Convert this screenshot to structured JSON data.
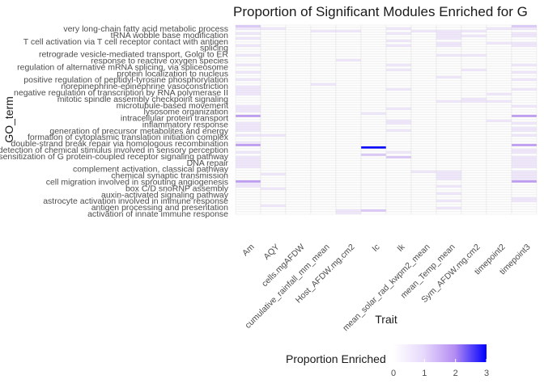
{
  "chart_data": {
    "type": "heatmap",
    "title": "Proportion of Significant Modules Enriched for G",
    "xlabel": "Trait",
    "ylabel": "GO_term",
    "legend": {
      "title": "Proportion Enriched",
      "ticks": [
        0,
        1,
        2,
        3
      ],
      "range": [
        0,
        3
      ],
      "low_color": "#ffffff",
      "high_color": "#0000ff",
      "placement": "bottom"
    },
    "x_categories": [
      "Am",
      "AQY",
      "cells.mgAFDW",
      "cumulative_rainfall_mm_mean",
      "Host_AFDW.mg.cm2",
      "Ic",
      "Ik",
      "mean_solar_rad_kwpm2_mean",
      "mean_Temp_mean",
      "Sym_AFDW.mg.cm2",
      "timepoint2",
      "timepoint3"
    ],
    "y_tick_labels": [
      "very long-chain fatty acid metabolic process",
      "tRNA wobble base modification",
      "T cell activation via T cell receptor contact with antigen",
      "splicing",
      "retrograde vesicle-mediated transport, Golgi to ER",
      "response to reactive oxygen species",
      "regulation of alternative mRNA splicing, via spliceosome",
      "protein localization to nucleus",
      "positive regulation of peptidyl-tyrosine phosphorylation",
      "norepinephrine-epinephrine vasoconstriction",
      "negative regulation of transcription by RNA polymerase II",
      "mitotic spindle assembly checkpoint signaling",
      "microtubule-based movement",
      "lysosome organization",
      "intracellular protein transport",
      "inflammatory response",
      "generation of precursor metabolites and energy",
      "formation of cytoplasmic translation initiation complex",
      "double-strand break repair via homologous recombination",
      "detection of chemical stimulus involved in sensory perception",
      "desensitization of G protein-coupled receptor signaling pathway",
      "DNA repair",
      "complement activation, classical pathway",
      "chemical synaptic transmission",
      "cell migration involved in sprouting angiogenesis",
      "box C/D snoRNP assembly",
      "auxin-activated signaling pathway",
      "astrocyte activation involved in immune response",
      "antigen processing and presentation",
      "activation of innate immune response"
    ],
    "n_rows": 78,
    "values": [
      [
        1.2,
        0,
        0,
        0,
        0,
        0,
        0,
        0,
        0,
        0,
        0,
        1.2
      ],
      [
        0.6,
        0.6,
        0,
        0,
        0,
        0,
        0.6,
        0,
        0,
        0,
        0.6,
        0.6
      ],
      [
        0,
        0,
        0,
        0.6,
        0.6,
        0,
        0,
        0.6,
        0.6,
        0.6,
        0,
        0
      ],
      [
        0.6,
        0,
        0,
        0,
        0,
        0,
        0.6,
        0,
        0.6,
        0,
        0,
        0.6
      ],
      [
        0,
        0,
        0,
        0,
        0,
        0,
        0,
        0,
        0.6,
        0.6,
        0,
        0.6
      ],
      [
        0.6,
        0,
        0,
        0,
        0,
        0,
        0,
        0,
        0.6,
        0,
        0,
        0
      ],
      [
        0,
        0,
        0,
        0,
        0,
        0,
        0.6,
        0,
        0,
        0,
        0,
        0
      ],
      [
        0,
        0,
        0,
        0,
        0,
        0,
        0,
        0,
        0.6,
        0,
        0.6,
        0.6
      ],
      [
        0.6,
        0,
        0,
        0,
        0,
        0,
        0.6,
        0,
        0.6,
        0,
        0,
        0.6
      ],
      [
        0,
        0,
        0,
        0,
        0,
        0,
        0,
        0,
        0,
        0,
        0,
        0
      ],
      [
        0,
        0,
        0,
        0,
        0,
        0,
        0,
        0,
        0,
        0,
        0,
        0
      ],
      [
        0,
        0,
        0,
        0,
        0,
        0,
        0,
        0,
        0,
        0,
        0,
        0
      ],
      [
        0.6,
        0,
        0,
        0,
        0,
        0,
        0,
        0,
        0.6,
        0.6,
        0,
        0
      ],
      [
        0,
        0,
        0,
        0,
        0,
        0,
        0,
        0,
        0,
        0,
        0,
        0
      ],
      [
        0,
        0,
        0,
        0,
        0.6,
        0,
        0,
        0,
        0,
        0,
        0,
        0
      ],
      [
        0,
        0,
        0,
        0,
        0,
        0,
        0,
        0,
        0,
        0,
        0,
        0
      ],
      [
        0.6,
        0,
        0,
        0,
        0,
        0,
        0.6,
        0,
        0,
        0,
        0,
        0.6
      ],
      [
        0,
        0,
        0,
        0,
        0,
        0,
        0,
        0,
        0,
        0,
        0,
        0
      ],
      [
        0,
        0,
        0,
        0,
        0,
        0,
        0.6,
        0,
        0,
        0.6,
        0,
        0
      ],
      [
        0.6,
        0,
        0,
        0,
        0,
        0,
        0,
        0,
        0,
        0,
        0,
        0.6
      ],
      [
        0,
        0,
        0,
        0,
        0,
        0,
        0,
        0,
        0,
        0,
        0,
        0
      ],
      [
        0,
        0,
        0,
        0,
        0,
        0,
        0,
        0,
        0.6,
        0,
        0,
        0
      ],
      [
        0.6,
        0,
        0,
        0,
        0,
        0,
        0,
        0,
        0,
        0,
        0,
        0.6
      ],
      [
        0,
        0,
        0,
        0,
        0,
        0,
        0,
        0,
        0,
        0,
        0,
        0
      ],
      [
        0,
        0,
        0,
        0.6,
        0,
        0,
        0,
        0,
        0,
        0,
        0,
        0
      ],
      [
        0.6,
        0,
        0,
        0,
        0,
        0,
        0,
        0,
        0,
        0,
        0,
        0
      ],
      [
        0.6,
        0,
        0,
        0,
        0,
        0,
        0.6,
        0,
        0,
        0,
        0,
        0.6
      ],
      [
        0.6,
        0,
        0,
        0,
        0,
        0,
        0,
        0,
        0,
        0,
        0,
        0
      ],
      [
        0.6,
        0,
        0,
        0,
        0,
        0,
        0,
        0,
        0,
        0,
        0.6,
        0
      ],
      [
        0,
        0,
        0,
        0,
        0,
        0,
        0,
        0,
        0,
        0,
        0,
        0
      ],
      [
        0,
        0,
        0,
        0,
        0,
        0,
        0,
        0,
        0,
        0.6,
        0,
        0
      ],
      [
        0,
        0,
        0,
        0,
        0,
        0,
        0,
        0,
        0.6,
        0.6,
        0.6,
        0
      ],
      [
        0,
        0,
        0,
        0,
        0,
        0,
        0,
        0,
        0,
        0,
        0,
        0
      ],
      [
        0.6,
        0,
        0,
        0,
        0,
        0,
        0,
        0,
        0,
        0,
        0,
        0.6
      ],
      [
        0.6,
        0,
        0,
        0,
        0,
        0,
        0.6,
        0,
        0,
        0,
        0,
        0
      ],
      [
        0.6,
        0,
        0,
        0,
        0,
        0,
        0,
        0,
        0,
        0,
        0,
        0
      ],
      [
        0,
        0,
        0,
        0,
        0,
        0.6,
        0,
        0,
        0,
        0,
        0,
        0
      ],
      [
        1.8,
        0,
        0,
        0,
        0,
        0,
        0,
        0,
        0,
        0,
        0,
        1.8
      ],
      [
        0,
        0,
        0,
        0,
        0,
        0,
        0,
        0,
        0,
        0,
        0,
        0
      ],
      [
        0,
        0,
        0,
        0,
        0,
        0,
        0.6,
        0,
        0,
        0,
        0.6,
        0
      ],
      [
        0.6,
        0,
        0,
        0,
        0,
        0,
        0.6,
        0,
        0,
        0,
        0,
        0.6
      ],
      [
        0.6,
        0,
        0,
        0,
        0,
        0,
        0,
        0,
        0,
        0,
        0,
        0
      ],
      [
        0.6,
        0,
        0,
        0,
        0,
        0,
        0,
        0,
        0,
        0,
        0,
        0.6
      ],
      [
        0.6,
        0,
        0,
        0,
        0,
        0,
        0.6,
        0,
        0,
        0,
        0,
        0.6
      ],
      [
        0,
        0,
        0,
        0,
        0,
        0,
        0,
        0,
        0,
        0,
        0,
        0
      ],
      [
        0.6,
        0.6,
        0,
        0,
        0,
        0,
        0,
        0,
        0,
        0,
        0,
        0.6
      ],
      [
        0,
        0,
        0,
        0,
        0,
        0,
        0,
        0,
        0,
        0,
        0,
        0
      ],
      [
        0,
        0,
        0,
        0,
        0,
        0,
        0,
        0,
        0,
        0,
        0,
        0
      ],
      [
        0.6,
        0,
        0,
        0,
        0,
        0,
        0,
        0,
        0,
        0,
        0,
        0
      ],
      [
        1.8,
        0,
        0,
        0,
        0,
        0,
        0,
        0,
        0,
        0,
        0,
        1.8
      ],
      [
        0,
        0,
        0,
        0,
        0,
        3,
        0,
        0,
        0,
        0,
        0,
        0
      ],
      [
        0,
        0,
        0,
        0,
        0,
        0,
        0,
        0,
        0,
        0,
        0,
        0.6
      ],
      [
        0.6,
        0,
        0,
        0,
        0,
        0,
        0.6,
        0,
        0,
        0,
        0,
        0.6
      ],
      [
        0,
        0,
        0,
        0,
        0,
        1.2,
        0,
        0,
        0,
        0,
        0,
        0
      ],
      [
        0.6,
        0,
        0,
        0,
        0,
        0,
        1.2,
        0,
        0,
        0,
        0,
        0.6
      ],
      [
        0.6,
        0,
        0,
        0,
        0,
        0,
        0,
        0,
        0,
        0,
        0,
        0.6
      ],
      [
        0.6,
        0,
        0,
        0,
        0,
        0,
        0,
        0,
        0,
        0,
        0,
        0.6
      ],
      [
        0.6,
        0,
        0,
        0,
        0,
        0,
        0,
        0,
        0,
        0,
        0,
        0.6
      ],
      [
        0.6,
        0,
        0,
        0,
        0,
        0,
        0,
        0,
        0,
        0,
        0,
        0.6
      ],
      [
        0,
        0,
        0,
        0,
        0,
        0,
        0,
        0,
        0,
        0,
        0,
        0
      ],
      [
        0,
        0,
        0,
        0,
        0,
        0,
        0,
        0.6,
        0.6,
        0,
        0,
        0.6
      ],
      [
        0,
        0.6,
        0,
        0,
        0,
        0,
        0,
        0,
        0.6,
        0,
        0,
        0.6
      ],
      [
        0,
        0,
        0,
        0,
        0,
        0,
        0,
        0,
        0.6,
        0,
        0,
        0.6
      ],
      [
        0,
        0,
        0,
        0,
        0,
        0,
        0,
        0,
        0.6,
        0,
        0,
        0.6
      ],
      [
        1.8,
        0,
        0,
        0,
        0,
        0,
        0,
        0,
        0,
        0,
        0,
        1.8
      ],
      [
        0.6,
        0,
        0,
        0,
        0,
        0,
        0,
        0,
        0,
        0,
        0,
        0
      ],
      [
        0.6,
        0,
        0,
        0,
        0,
        0,
        0,
        0,
        0.6,
        0,
        0,
        0
      ],
      [
        0,
        0.6,
        0,
        0,
        0,
        0,
        0,
        0,
        0,
        0,
        0,
        0
      ],
      [
        0,
        0,
        0,
        0,
        0,
        0,
        0,
        0,
        0,
        0,
        0,
        0
      ],
      [
        0,
        0,
        0,
        0,
        0,
        0,
        0,
        0,
        0.6,
        0,
        0,
        0
      ],
      [
        0,
        0,
        0,
        0,
        0,
        0,
        0,
        0,
        0,
        0,
        0,
        0
      ],
      [
        0,
        0,
        0,
        0,
        0,
        0,
        0,
        0,
        0,
        0,
        0,
        0.6
      ],
      [
        0,
        0,
        0,
        0,
        0,
        0,
        0,
        0,
        0.6,
        0,
        0,
        0.6
      ],
      [
        0,
        0,
        0,
        0,
        0,
        0,
        0,
        0,
        0,
        0,
        0,
        0
      ],
      [
        0,
        0.6,
        0,
        0,
        0,
        0,
        0,
        0,
        0,
        0,
        0,
        0
      ],
      [
        0,
        0,
        0,
        0,
        0,
        0,
        0,
        0,
        0.6,
        0,
        0,
        0
      ],
      [
        0,
        0,
        0,
        0,
        0.6,
        1.2,
        0,
        0,
        0,
        0,
        0,
        0
      ],
      [
        0,
        0,
        0,
        0,
        0.6,
        0,
        0,
        0,
        0,
        0,
        0,
        0
      ]
    ],
    "grid": true
  }
}
